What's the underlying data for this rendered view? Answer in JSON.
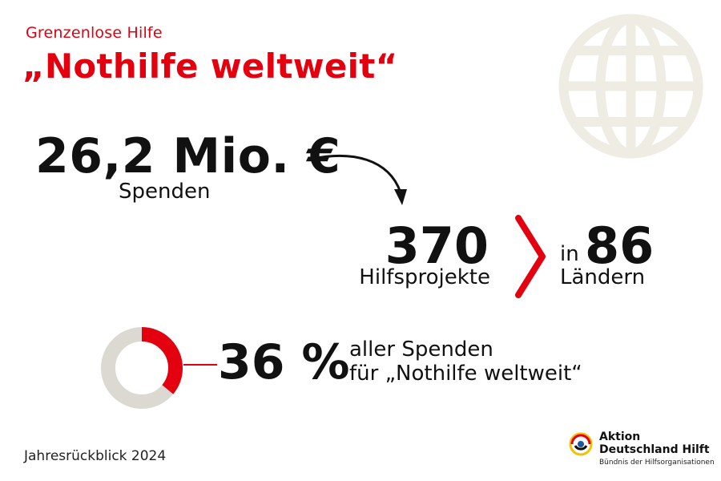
{
  "header": {
    "subtitle": "Grenzenlose Hilfe",
    "title": "„Nothilfe weltweit“"
  },
  "donations": {
    "amount": "26,2 Mio. €",
    "label": "Spenden"
  },
  "projects": {
    "count": "370",
    "label": "Hilfsprojekte"
  },
  "countries": {
    "prefix": "in",
    "count": "86",
    "label": "Ländern"
  },
  "share": {
    "percent": "36 %",
    "value": 36,
    "line1": "aller Spenden",
    "line2": "für „Nothilfe weltweit“"
  },
  "footer": {
    "year_label": "Jahresrückblick 2024"
  },
  "logo": {
    "line1": "Aktion",
    "line2": "Deutschland Hilft",
    "line3": "Bündnis der Hilfsorganisationen"
  },
  "colors": {
    "accent": "#e3000f",
    "donut_base": "#dcd9d3",
    "globe": "#efece4",
    "text": "#111111"
  },
  "icons": {
    "globe": "globe-icon",
    "arrow": "curved-arrow-icon",
    "chevron": "chevron-right-icon",
    "donut": "donut-chart",
    "logo": "aktion-deutschland-hilft-logo"
  }
}
